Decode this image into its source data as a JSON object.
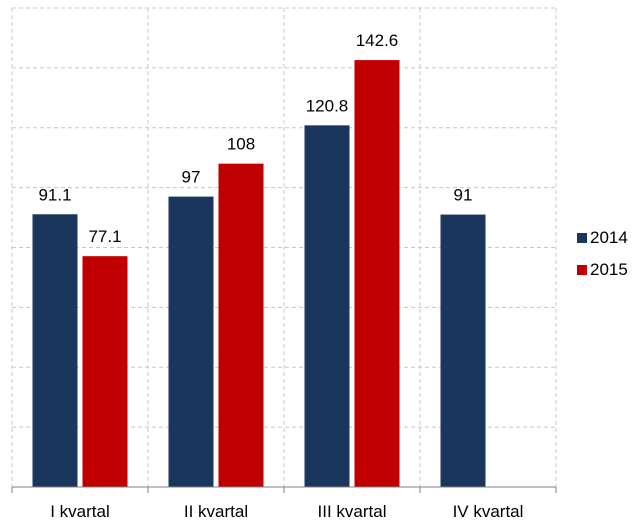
{
  "chart_data": {
    "type": "bar",
    "categories": [
      "I kvartal",
      "II kvartal",
      "III kvartal",
      "IV kvartal"
    ],
    "series": [
      {
        "name": "2014",
        "color": "#1b365d",
        "values": [
          91.1,
          97,
          120.8,
          91
        ],
        "labels": [
          "91.1",
          "97",
          "120.8",
          "91"
        ]
      },
      {
        "name": "2015",
        "color": "#c00000",
        "values": [
          77.1,
          108,
          142.6,
          null
        ],
        "labels": [
          "77.1",
          "108",
          "142.6",
          ""
        ]
      }
    ],
    "ylim": [
      0,
      160
    ],
    "grid": true,
    "legend_position": "right"
  }
}
